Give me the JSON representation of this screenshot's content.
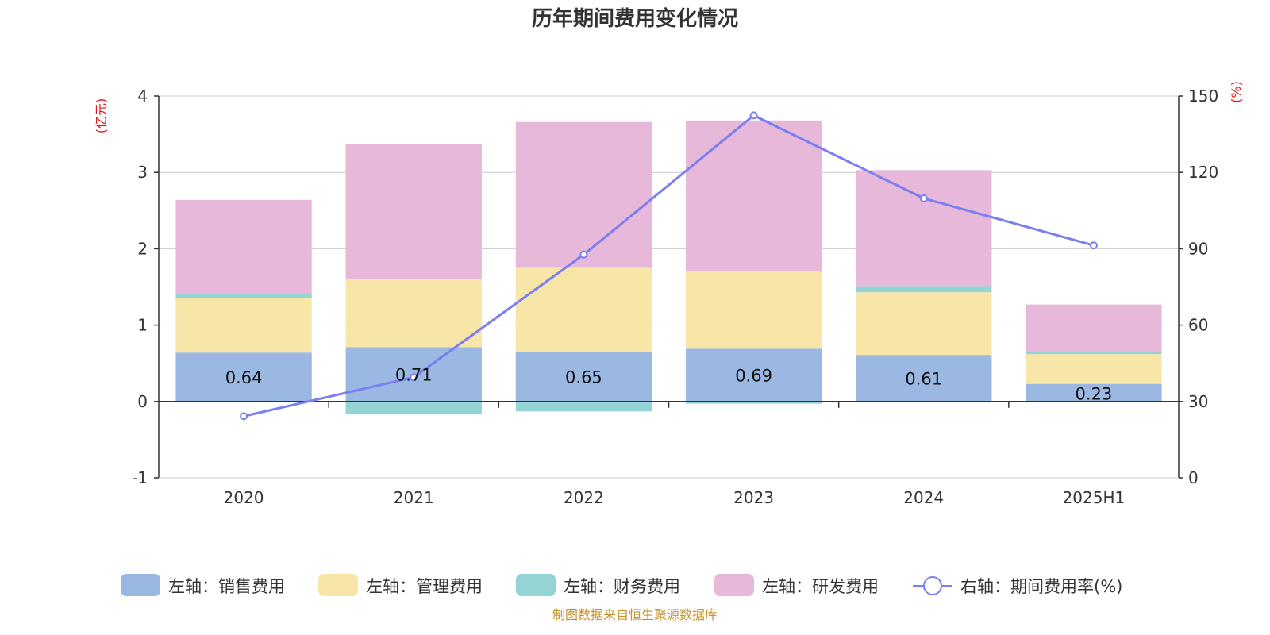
{
  "chart_data": {
    "type": "bar",
    "title": "历年期间费用变化情况",
    "categories": [
      "2020",
      "2021",
      "2022",
      "2023",
      "2024",
      "2025H1"
    ],
    "left_axis": {
      "unit": "(亿元)",
      "ylim": [
        -1,
        4
      ],
      "ticks": [
        "4",
        "3",
        "2",
        "1",
        "0",
        "-1"
      ]
    },
    "right_axis": {
      "unit": "(%)",
      "ylim": [
        0,
        150
      ],
      "ticks": [
        "150",
        "120",
        "90",
        "60",
        "30",
        "0"
      ]
    },
    "series": [
      {
        "name": "左轴：销售费用",
        "axis": "left",
        "kind": "bar",
        "values": [
          0.64,
          0.71,
          0.65,
          0.69,
          0.61,
          0.23
        ],
        "labels": [
          "0.64",
          "0.71",
          "0.65",
          "0.69",
          "0.61",
          "0.23"
        ]
      },
      {
        "name": "左轴：管理费用",
        "axis": "left",
        "kind": "bar",
        "values": [
          0.72,
          0.89,
          1.1,
          1.01,
          0.82,
          0.39
        ]
      },
      {
        "name": "左轴：财务费用",
        "axis": "left",
        "kind": "bar",
        "values": [
          0.05,
          -0.17,
          -0.13,
          -0.03,
          0.08,
          0.03
        ]
      },
      {
        "name": "左轴：研发费用",
        "axis": "left",
        "kind": "bar",
        "values": [
          1.23,
          1.77,
          1.91,
          1.98,
          1.52,
          0.62
        ]
      },
      {
        "name": "右轴：期间费用率(%)",
        "axis": "right",
        "kind": "line",
        "values": [
          24.2,
          39.5,
          87.7,
          142.4,
          109.8,
          91.3
        ]
      }
    ],
    "colors": [
      "#9bb8e3",
      "#f8e6a8",
      "#94d4d4",
      "#e8b8da",
      "#7b7ef0"
    ],
    "grid": true,
    "legend_position": "bottom"
  },
  "footer": {
    "source": "制图数据来自恒生聚源数据库"
  }
}
